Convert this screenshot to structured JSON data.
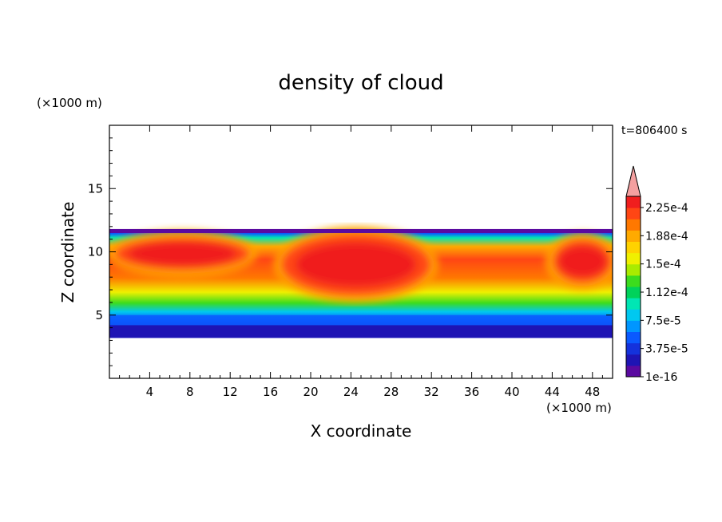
{
  "chart_data": {
    "type": "heatmap",
    "title": "density of cloud",
    "xlabel": "X coordinate",
    "ylabel": "Z coordinate",
    "x_unit": "(×1000 m)",
    "y_unit": "(×1000 m)",
    "time_label": "t=806400 s",
    "xlim": [
      0,
      50
    ],
    "ylim": [
      0,
      20
    ],
    "x_ticks": [
      4,
      8,
      12,
      16,
      20,
      24,
      28,
      32,
      36,
      40,
      44,
      48
    ],
    "y_ticks": [
      5,
      10,
      15
    ],
    "colorbar": {
      "labels": [
        "1e-16",
        "3.75e-5",
        "7.5e-5",
        "1.12e-4",
        "1.5e-4",
        "1.88e-4",
        "2.25e-4"
      ],
      "extend": "max",
      "colors": [
        "#5a0aa0",
        "#1e14b4",
        "#1432dc",
        "#0a5aff",
        "#0096ff",
        "#00c8f0",
        "#00e6b4",
        "#00d25a",
        "#3cdc1e",
        "#aaeb00",
        "#f0f000",
        "#ffd200",
        "#ffaa00",
        "#ff7800",
        "#ff4614",
        "#f01e1e",
        "#f4a0a0"
      ]
    },
    "field": {
      "cloud_layer_z": [
        3.2,
        11.8
      ],
      "core_regions": [
        {
          "x": [
            0.5,
            14
          ],
          "z": [
            8.5,
            11.2
          ]
        },
        {
          "x": [
            17,
            32
          ],
          "z": [
            6.5,
            11.5
          ]
        },
        {
          "x": [
            44,
            50
          ],
          "z": [
            7.5,
            11
          ]
        }
      ]
    }
  }
}
